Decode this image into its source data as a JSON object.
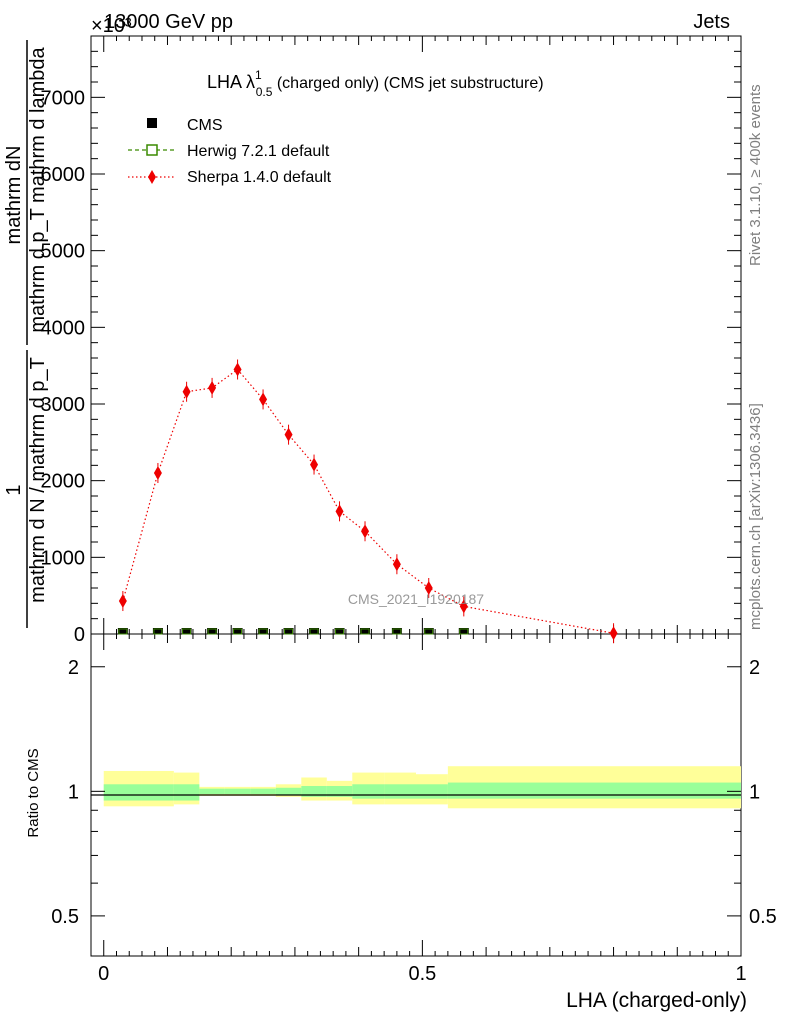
{
  "header": {
    "energy": "13000 GeV pp",
    "process": "Jets",
    "exponent": "×10³",
    "watermark": "CMS_2021_I1920187"
  },
  "side": {
    "rivet": "Rivet 3.1.10, ≥ 400k events",
    "mcplots": "mcplots.cern.ch [arXiv:1306.3436]"
  },
  "title": {
    "main": "LHA λ",
    "sup": "1",
    "sub": "0.5",
    "rest": " (charged only) (CMS jet substructure)"
  },
  "axes": {
    "ylabel_top_num": "mathrm dN",
    "ylabel_top_den": "mathrm d p_T mathrm d lambda",
    "ylabel_left_num": "1",
    "ylabel_left_den": "mathrm d N / mathrm d p_T",
    "ylabel_ratio": "Ratio to CMS",
    "xlabel": "LHA (charged-only)"
  },
  "legend": {
    "cms": "CMS",
    "herwig": "Herwig 7.2.1 default",
    "sherpa": "Sherpa 1.4.0 default"
  },
  "colors": {
    "sherpa": "#ee0000",
    "herwig": "#3a8a00",
    "band_inner": "#99ff99",
    "band_outer": "#ffff99"
  },
  "chart_data": {
    "type": "line",
    "main": {
      "ylim": [
        0,
        7800
      ],
      "yticks": [
        1000,
        2000,
        3000,
        4000,
        5000,
        6000,
        7000
      ],
      "ytick_labels": [
        "1000",
        "2000",
        "3000",
        "4000",
        "5000",
        "6000",
        "7000"
      ],
      "series": [
        {
          "name": "Sherpa 1.4.0 default",
          "x": [
            0.03,
            0.085,
            0.13,
            0.17,
            0.21,
            0.25,
            0.29,
            0.33,
            0.37,
            0.41,
            0.46,
            0.51,
            0.565,
            0.8
          ],
          "values": [
            430,
            2100,
            3160,
            3210,
            3450,
            3060,
            2600,
            2210,
            1600,
            1340,
            910,
            600,
            360,
            10
          ]
        },
        {
          "name": "CMS",
          "x": [
            0.03,
            0.085,
            0.13,
            0.17,
            0.21,
            0.25,
            0.29,
            0.33,
            0.37,
            0.41,
            0.46,
            0.51,
            0.565
          ],
          "values": [
            0,
            0,
            0,
            0,
            0,
            0,
            0,
            0,
            0,
            0,
            0,
            0,
            0
          ]
        },
        {
          "name": "Herwig 7.2.1 default",
          "x": [
            0.03,
            0.085,
            0.13,
            0.17,
            0.21,
            0.25,
            0.29,
            0.33,
            0.37,
            0.41,
            0.46,
            0.51,
            0.565
          ],
          "values": [
            0,
            0,
            0,
            0,
            0,
            0,
            0,
            0,
            0,
            0,
            0,
            0,
            0
          ]
        }
      ]
    },
    "ratio": {
      "ylim": [
        0.4,
        2.4
      ],
      "yticks": [
        0.5,
        1,
        2
      ],
      "ytick_labels": [
        "0.5",
        "1",
        "2"
      ],
      "bins": [
        {
          "lo": 0.0,
          "hi": 0.06,
          "inner": [
            0.95,
            1.04
          ],
          "outer": [
            0.92,
            1.12
          ]
        },
        {
          "lo": 0.06,
          "hi": 0.11,
          "inner": [
            0.95,
            1.04
          ],
          "outer": [
            0.92,
            1.12
          ]
        },
        {
          "lo": 0.11,
          "hi": 0.15,
          "inner": [
            0.95,
            1.04
          ],
          "outer": [
            0.93,
            1.11
          ]
        },
        {
          "lo": 0.15,
          "hi": 0.19,
          "inner": [
            0.985,
            1.015
          ],
          "outer": [
            0.975,
            1.025
          ]
        },
        {
          "lo": 0.19,
          "hi": 0.23,
          "inner": [
            0.985,
            1.015
          ],
          "outer": [
            0.975,
            1.025
          ]
        },
        {
          "lo": 0.23,
          "hi": 0.27,
          "inner": [
            0.985,
            1.015
          ],
          "outer": [
            0.975,
            1.025
          ]
        },
        {
          "lo": 0.27,
          "hi": 0.31,
          "inner": [
            0.98,
            1.02
          ],
          "outer": [
            0.97,
            1.04
          ]
        },
        {
          "lo": 0.31,
          "hi": 0.35,
          "inner": [
            0.97,
            1.03
          ],
          "outer": [
            0.95,
            1.08
          ]
        },
        {
          "lo": 0.35,
          "hi": 0.39,
          "inner": [
            0.97,
            1.03
          ],
          "outer": [
            0.95,
            1.06
          ]
        },
        {
          "lo": 0.39,
          "hi": 0.44,
          "inner": [
            0.96,
            1.04
          ],
          "outer": [
            0.93,
            1.11
          ]
        },
        {
          "lo": 0.44,
          "hi": 0.49,
          "inner": [
            0.96,
            1.04
          ],
          "outer": [
            0.93,
            1.11
          ]
        },
        {
          "lo": 0.49,
          "hi": 0.54,
          "inner": [
            0.96,
            1.04
          ],
          "outer": [
            0.93,
            1.1
          ]
        },
        {
          "lo": 0.54,
          "hi": 1.0,
          "inner": [
            0.96,
            1.05
          ],
          "outer": [
            0.91,
            1.15
          ]
        }
      ]
    },
    "x": {
      "xlim": [
        -0.02,
        1.0
      ],
      "xticks": [
        0,
        0.5,
        1
      ],
      "xtick_labels": [
        "0",
        "0.5",
        "1"
      ]
    }
  }
}
